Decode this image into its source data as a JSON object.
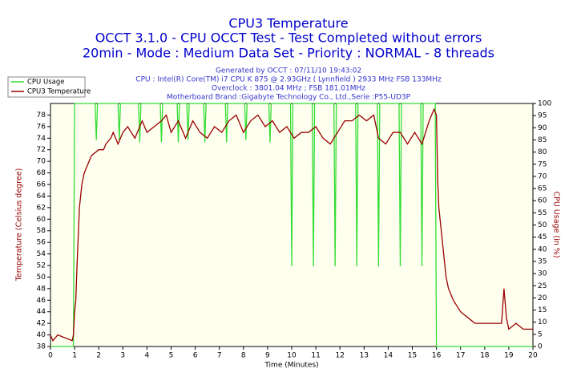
{
  "chart_data": {
    "type": "line",
    "title": "CPU3 Temperature",
    "subtitles": [
      "OCCT 3.1.0 - CPU OCCT Test - Test Completed without errors",
      "20min - Mode : Medium Data Set - Priority : NORMAL - 8 threads"
    ],
    "info": [
      "Generated by OCCT : 07/11/10 19:43:02",
      "CPU : Intel(R) Core(TM) i7 CPU K 875 @ 2.93GHz ( Lynnfield ) 2933 MHz FSB 133MHz",
      "Overclock : 3801.04 MHz ; FSB 181.01MHz",
      "Motherboard Brand :Gigabyte Technology Co., Ltd.,Serie :P55-UD3P"
    ],
    "xlabel": "Time (Minutes)",
    "ylabel": "Temperature (Celsius degree)",
    "y2label": "CPU Usage (in %)",
    "xlim": [
      0,
      20
    ],
    "xticks": [
      0,
      1,
      2,
      3,
      4,
      5,
      6,
      7,
      8,
      9,
      10,
      11,
      12,
      13,
      14,
      15,
      16,
      17,
      18,
      19,
      20
    ],
    "ylim": [
      38,
      80
    ],
    "yticks": [
      38,
      40,
      42,
      44,
      46,
      48,
      50,
      52,
      54,
      56,
      58,
      60,
      62,
      64,
      66,
      68,
      70,
      72,
      74,
      76,
      78
    ],
    "y2lim": [
      0,
      100
    ],
    "y2ticks": [
      0,
      5,
      10,
      15,
      20,
      25,
      30,
      35,
      40,
      45,
      50,
      55,
      60,
      65,
      70,
      75,
      80,
      85,
      90,
      95,
      100
    ],
    "legend": "upper left",
    "series": [
      {
        "name": "CPU Usage",
        "color": "#33dd33",
        "axis": "y2",
        "x": [
          0,
          0.95,
          1.0,
          1.85,
          1.9,
          1.95,
          2.8,
          2.85,
          2.9,
          3.65,
          3.7,
          3.75,
          4.55,
          4.6,
          4.65,
          5.25,
          5.3,
          5.35,
          5.65,
          5.7,
          5.75,
          6.35,
          6.4,
          6.45,
          7.25,
          7.3,
          7.35,
          8.05,
          8.1,
          8.15,
          9.05,
          9.1,
          9.15,
          9.95,
          10.0,
          10.05,
          10.85,
          10.9,
          10.95,
          11.75,
          11.8,
          11.85,
          12.65,
          12.7,
          12.75,
          13.55,
          13.6,
          13.65,
          14.45,
          14.5,
          14.55,
          15.35,
          15.4,
          15.45,
          15.95,
          16.0,
          20
        ],
        "values": [
          0,
          0,
          100,
          100,
          85,
          100,
          100,
          85,
          100,
          100,
          84,
          100,
          100,
          84,
          100,
          100,
          84,
          100,
          100,
          85,
          100,
          100,
          84,
          100,
          100,
          84,
          100,
          100,
          85,
          100,
          100,
          84,
          100,
          100,
          33,
          100,
          100,
          33,
          100,
          100,
          33,
          100,
          100,
          33,
          100,
          100,
          33,
          100,
          100,
          33,
          100,
          100,
          33,
          100,
          100,
          0,
          0
        ]
      },
      {
        "name": "CPU3 Temperature",
        "color": "#990000",
        "x": [
          0,
          0.1,
          0.3,
          0.9,
          0.95,
          1.0,
          1.05,
          1.1,
          1.2,
          1.3,
          1.4,
          1.5,
          1.6,
          1.7,
          2.0,
          2.2,
          2.3,
          2.5,
          2.6,
          2.8,
          3.0,
          3.2,
          3.5,
          3.8,
          4.0,
          4.3,
          4.6,
          4.8,
          5.0,
          5.3,
          5.6,
          5.9,
          6.2,
          6.5,
          6.8,
          7.1,
          7.4,
          7.7,
          8.0,
          8.3,
          8.6,
          8.9,
          9.2,
          9.5,
          9.8,
          10.1,
          10.4,
          10.7,
          11.0,
          11.3,
          11.6,
          11.9,
          12.2,
          12.5,
          12.8,
          13.1,
          13.4,
          13.6,
          13.9,
          14.2,
          14.5,
          14.8,
          15.1,
          15.4,
          15.7,
          15.9,
          16.0,
          16.05,
          16.1,
          16.2,
          16.3,
          16.4,
          16.5,
          16.7,
          17.0,
          17.3,
          17.6,
          18.0,
          18.5,
          18.7,
          18.8,
          18.9,
          19.0,
          19.3,
          19.6,
          20.0
        ],
        "values": [
          40,
          39,
          40,
          39,
          40,
          44,
          46,
          52,
          62,
          66,
          68,
          69,
          70,
          71,
          72,
          72,
          73,
          74,
          75,
          73,
          75,
          76,
          74,
          77,
          75,
          76,
          77,
          78,
          75,
          77,
          74,
          77,
          75,
          74,
          76,
          75,
          77,
          78,
          75,
          77,
          78,
          76,
          77,
          75,
          76,
          74,
          75,
          75,
          76,
          74,
          73,
          75,
          77,
          77,
          78,
          77,
          78,
          74,
          73,
          75,
          75,
          73,
          75,
          73,
          77,
          79,
          78,
          67,
          62,
          58,
          54,
          50,
          48,
          46,
          44,
          43,
          42,
          42,
          42,
          42,
          48,
          43,
          41,
          42,
          41,
          41
        ]
      }
    ]
  }
}
